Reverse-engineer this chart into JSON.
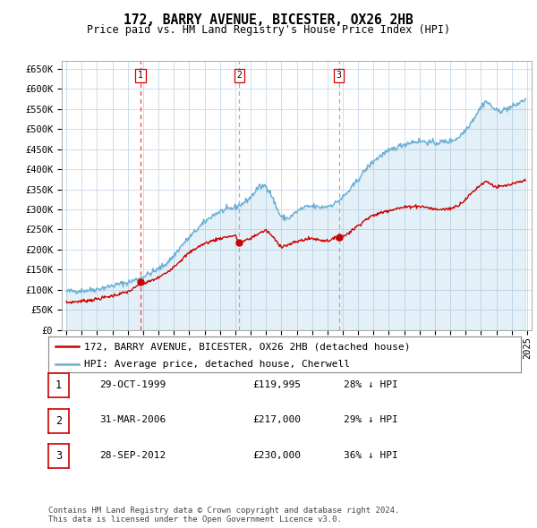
{
  "title": "172, BARRY AVENUE, BICESTER, OX26 2HB",
  "subtitle": "Price paid vs. HM Land Registry's House Price Index (HPI)",
  "ylim": [
    0,
    670000
  ],
  "yticks": [
    0,
    50000,
    100000,
    150000,
    200000,
    250000,
    300000,
    350000,
    400000,
    450000,
    500000,
    550000,
    600000,
    650000
  ],
  "ytick_labels": [
    "£0",
    "£50K",
    "£100K",
    "£150K",
    "£200K",
    "£250K",
    "£300K",
    "£350K",
    "£400K",
    "£450K",
    "£500K",
    "£550K",
    "£600K",
    "£650K"
  ],
  "xlim_start": 1994.7,
  "xlim_end": 2025.3,
  "background_color": "#ffffff",
  "grid_color": "#c8d8e8",
  "hpi_color": "#6baed6",
  "hpi_fill_alpha": 0.18,
  "sale_color": "#cc0000",
  "sale_dot_color": "#cc0000",
  "vline1_color": "#ee4444",
  "vline23_color": "#aaaaaa",
  "legend_hpi_label": "HPI: Average price, detached house, Cherwell",
  "legend_sale_label": "172, BARRY AVENUE, BICESTER, OX26 2HB (detached house)",
  "sales": [
    {
      "num": 1,
      "date_year": 1999.83,
      "price": 119995
    },
    {
      "num": 2,
      "date_year": 2006.25,
      "price": 217000
    },
    {
      "num": 3,
      "date_year": 2012.75,
      "price": 230000
    }
  ],
  "sale_table": [
    {
      "num": 1,
      "date": "29-OCT-1999",
      "price": "£119,995",
      "pct": "28% ↓ HPI"
    },
    {
      "num": 2,
      "date": "31-MAR-2006",
      "price": "£217,000",
      "pct": "29% ↓ HPI"
    },
    {
      "num": 3,
      "date": "28-SEP-2012",
      "price": "£230,000",
      "pct": "36% ↓ HPI"
    }
  ],
  "footnote": "Contains HM Land Registry data © Crown copyright and database right 2024.\nThis data is licensed under the Open Government Licence v3.0.",
  "title_fontsize": 10.5,
  "subtitle_fontsize": 8.5,
  "tick_fontsize": 7.5,
  "legend_fontsize": 8,
  "table_fontsize": 8,
  "footnote_fontsize": 6.5
}
